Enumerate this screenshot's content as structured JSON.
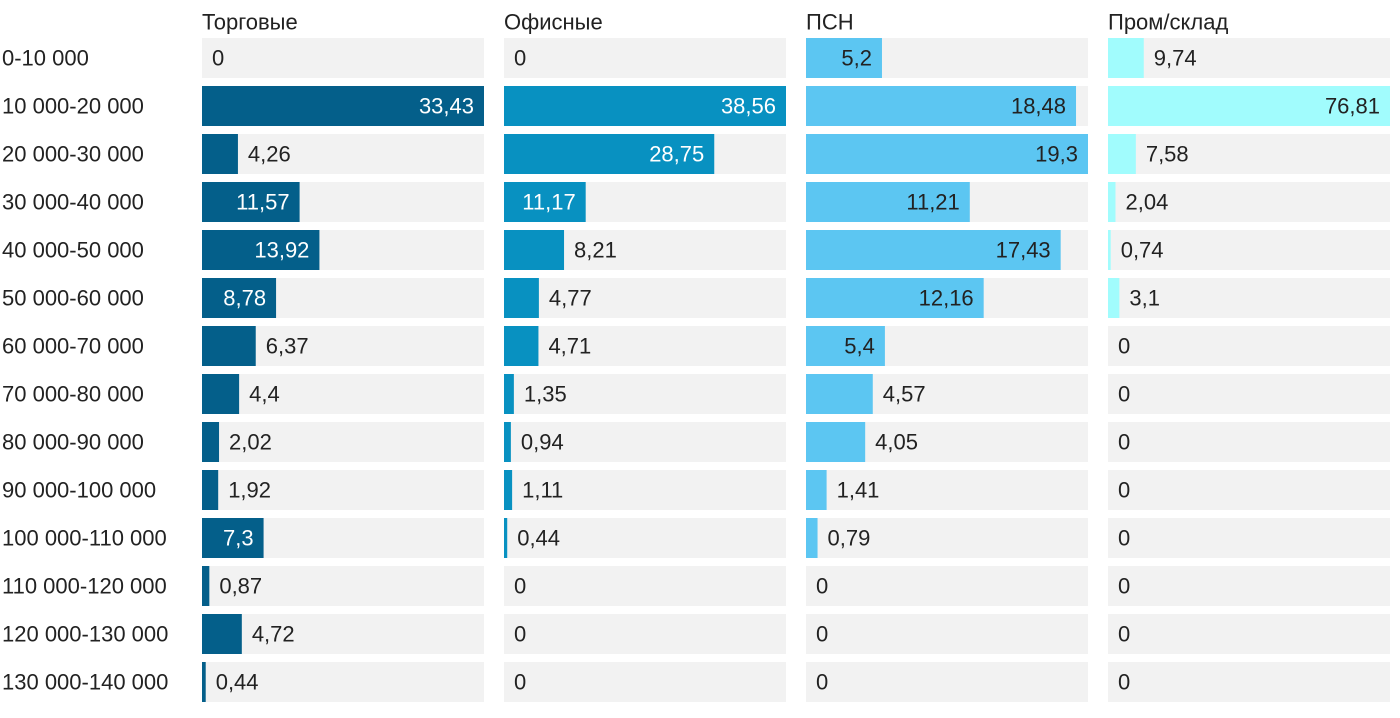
{
  "chart_data": {
    "type": "bar",
    "orientation": "horizontal",
    "layout": "small-multiples",
    "categories": [
      "0-10 000",
      "10 000-20 000",
      "20 000-30 000",
      "30 000-40 000",
      "40 000-50 000",
      "50 000-60 000",
      "60 000-70 000",
      "70 000-80 000",
      "80 000-90 000",
      "90 000-100 000",
      "100 000-110 000",
      "110 000-120 000",
      "120 000-130 000",
      "130 000-140 000"
    ],
    "series": [
      {
        "name": "Торговые",
        "color": "#045f8a",
        "values": [
          0,
          33.43,
          4.26,
          11.57,
          13.92,
          8.78,
          6.37,
          4.4,
          2.02,
          1.92,
          7.3,
          0.87,
          4.72,
          0.44
        ],
        "labels": [
          "0",
          "33,43",
          "4,26",
          "11,57",
          "13,92",
          "8,78",
          "6,37",
          "4,4",
          "2,02",
          "1,92",
          "7,3",
          "0,87",
          "4,72",
          "0,44"
        ]
      },
      {
        "name": "Офисные",
        "color": "#0891c1",
        "values": [
          0,
          38.56,
          28.75,
          11.17,
          8.21,
          4.77,
          4.71,
          1.35,
          0.94,
          1.11,
          0.44,
          0,
          0,
          0
        ],
        "labels": [
          "0",
          "38,56",
          "28,75",
          "11,17",
          "8,21",
          "4,77",
          "4,71",
          "1,35",
          "0,94",
          "1,11",
          "0,44",
          "0",
          "0",
          "0"
        ]
      },
      {
        "name": "ПСН",
        "color": "#5cc6f2",
        "values": [
          5.2,
          18.48,
          19.3,
          11.21,
          17.43,
          12.16,
          5.4,
          4.57,
          4.05,
          1.41,
          0.79,
          0,
          0,
          0
        ],
        "labels": [
          "5,2",
          "18,48",
          "19,3",
          "11,21",
          "17,43",
          "12,16",
          "5,4",
          "4,57",
          "4,05",
          "1,41",
          "0,79",
          "0",
          "0",
          "0"
        ]
      },
      {
        "name": "Пром/склад",
        "color": "#a1fcfd",
        "values": [
          9.74,
          76.81,
          7.58,
          2.04,
          0.74,
          3.1,
          0,
          0,
          0,
          0,
          0,
          0,
          0,
          0
        ],
        "labels": [
          "9,74",
          "76,81",
          "7,58",
          "2,04",
          "0,74",
          "3,1",
          "0",
          "0",
          "0",
          "0",
          "0",
          "0",
          "0",
          "0"
        ]
      }
    ],
    "background_color": "#f2f2f2",
    "label_color_dark": "#222222",
    "label_color_light": "#ffffff"
  }
}
